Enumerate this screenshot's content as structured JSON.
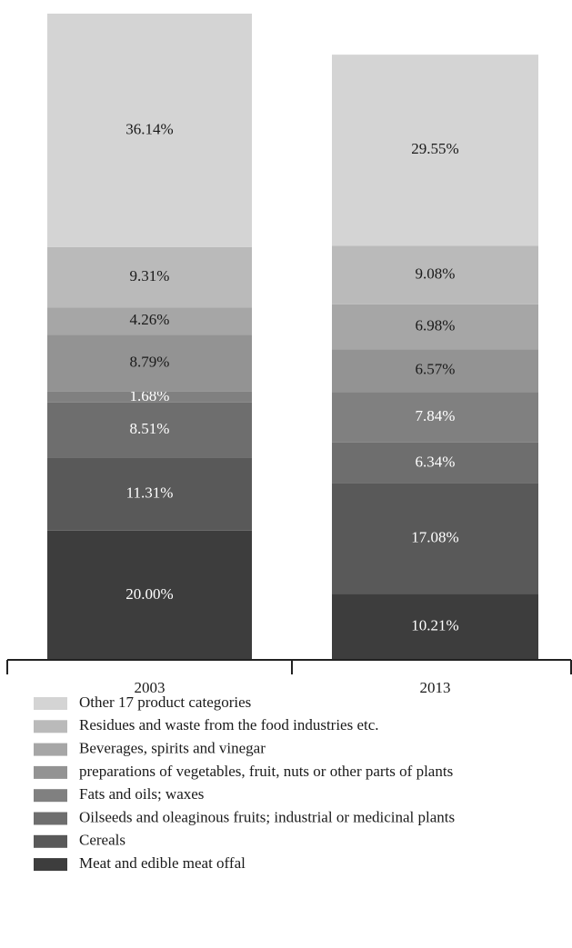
{
  "chart_data": {
    "type": "stacked_bar",
    "categories": [
      "2003",
      "2013"
    ],
    "ylim": [
      0,
      100
    ],
    "series": [
      {
        "name": "Meat and edible meat offal",
        "color": "#3d3d3d",
        "values": [
          20.0,
          10.21
        ],
        "value_labels": [
          "20.00%",
          "10.21%"
        ]
      },
      {
        "name": "Cereals",
        "color": "#595959",
        "values": [
          11.31,
          17.08
        ],
        "value_labels": [
          "11.31%",
          "17.08%"
        ]
      },
      {
        "name": "Oilseeds and oleaginous fruits; industrial or medicinal plants",
        "color": "#6e6e6e",
        "values": [
          8.51,
          6.34
        ],
        "value_labels": [
          "8.51%",
          "6.34%"
        ]
      },
      {
        "name": "Fats and oils; waxes",
        "color": "#808080",
        "values": [
          1.68,
          7.84
        ],
        "value_labels": [
          "1.68%",
          "7.84%"
        ]
      },
      {
        "name": "preparations of vegetables, fruit, nuts or other parts of plants",
        "color": "#939393",
        "values": [
          8.79,
          6.57
        ],
        "value_labels": [
          "8.79%",
          "6.57%"
        ]
      },
      {
        "name": "Beverages, spirits and vinegar",
        "color": "#a6a6a6",
        "values": [
          4.26,
          6.98
        ],
        "value_labels": [
          "4.26%",
          "6.98%"
        ]
      },
      {
        "name": "Residues and waste from the food industries etc.",
        "color": "#bababa",
        "values": [
          9.31,
          9.08
        ],
        "value_labels": [
          "9.31%",
          "9.08%"
        ]
      },
      {
        "name": "Other 17 product categories",
        "color": "#d4d4d4",
        "values": [
          36.14,
          29.55
        ],
        "value_labels": [
          "36.14%",
          "29.55%"
        ]
      }
    ]
  }
}
